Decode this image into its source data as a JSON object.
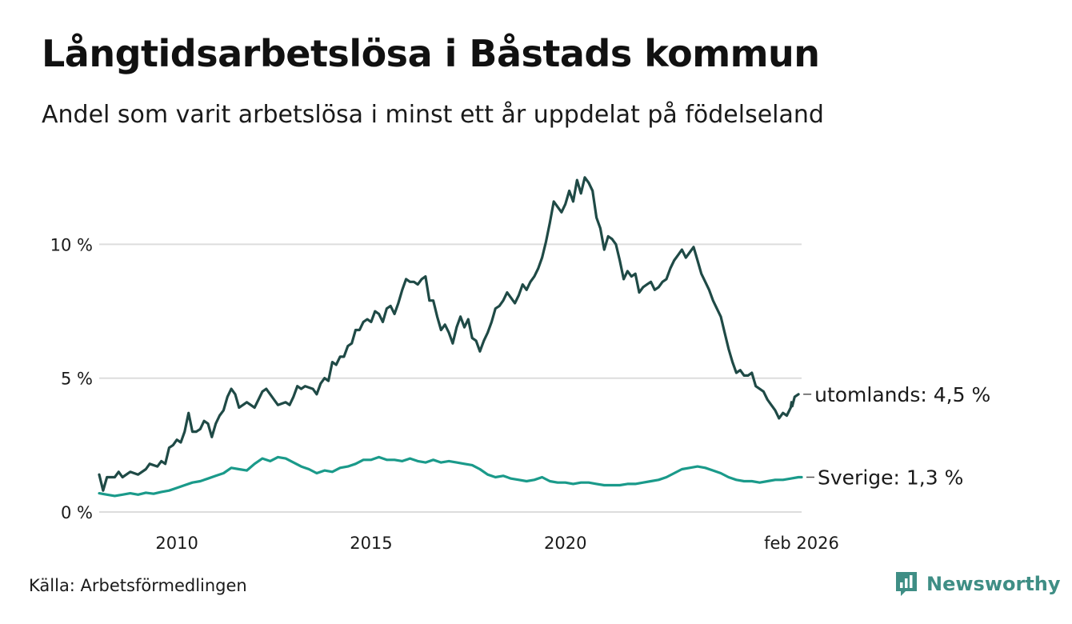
{
  "title": "Långtidsarbetslösa i Båstads kommun",
  "subtitle": "Andel som varit arbetslösa i minst ett år uppdelat på födelseland",
  "source": "Källa: Arbetsförmedlingen",
  "brand": "Newsworthy",
  "colors": {
    "utomlands": "#1f4a46",
    "sverige": "#1a9a8a",
    "grid": "#dddddd",
    "brand": "#3f8e85"
  },
  "chart_data": {
    "type": "line",
    "title": "Långtidsarbetslösa i Båstads kommun",
    "xlabel": "",
    "ylabel": "",
    "x_range": [
      2008.0,
      2026.08
    ],
    "ylim": [
      0,
      13
    ],
    "y_ticks": [
      {
        "value": 0,
        "label": "0 %"
      },
      {
        "value": 5,
        "label": "5 %"
      },
      {
        "value": 10,
        "label": "10 %"
      }
    ],
    "x_ticks": [
      {
        "value": 2010,
        "label": "2010"
      },
      {
        "value": 2015,
        "label": "2015"
      },
      {
        "value": 2020,
        "label": "2020"
      },
      {
        "value": 2026.08,
        "label": "feb 2026"
      }
    ],
    "series": [
      {
        "name": "utomlands",
        "end_label": "utomlands: 4,5 %",
        "points": [
          [
            2008.0,
            1.4
          ],
          [
            2008.1,
            0.8
          ],
          [
            2008.2,
            1.3
          ],
          [
            2008.4,
            1.3
          ],
          [
            2008.5,
            1.5
          ],
          [
            2008.6,
            1.3
          ],
          [
            2008.8,
            1.5
          ],
          [
            2009.0,
            1.4
          ],
          [
            2009.2,
            1.6
          ],
          [
            2009.3,
            1.8
          ],
          [
            2009.5,
            1.7
          ],
          [
            2009.6,
            1.9
          ],
          [
            2009.7,
            1.8
          ],
          [
            2009.8,
            2.4
          ],
          [
            2009.9,
            2.5
          ],
          [
            2010.0,
            2.7
          ],
          [
            2010.1,
            2.6
          ],
          [
            2010.2,
            3.0
          ],
          [
            2010.3,
            3.7
          ],
          [
            2010.4,
            3.0
          ],
          [
            2010.5,
            3.0
          ],
          [
            2010.6,
            3.1
          ],
          [
            2010.7,
            3.4
          ],
          [
            2010.8,
            3.3
          ],
          [
            2010.9,
            2.8
          ],
          [
            2011.0,
            3.3
          ],
          [
            2011.1,
            3.6
          ],
          [
            2011.2,
            3.8
          ],
          [
            2011.3,
            4.3
          ],
          [
            2011.4,
            4.6
          ],
          [
            2011.5,
            4.4
          ],
          [
            2011.6,
            3.9
          ],
          [
            2011.7,
            4.0
          ],
          [
            2011.8,
            4.1
          ],
          [
            2011.9,
            4.0
          ],
          [
            2012.0,
            3.9
          ],
          [
            2012.1,
            4.2
          ],
          [
            2012.2,
            4.5
          ],
          [
            2012.3,
            4.6
          ],
          [
            2012.4,
            4.4
          ],
          [
            2012.5,
            4.2
          ],
          [
            2012.6,
            4.0
          ],
          [
            2012.8,
            4.1
          ],
          [
            2012.9,
            4.0
          ],
          [
            2013.0,
            4.3
          ],
          [
            2013.1,
            4.7
          ],
          [
            2013.2,
            4.6
          ],
          [
            2013.3,
            4.7
          ],
          [
            2013.5,
            4.6
          ],
          [
            2013.6,
            4.4
          ],
          [
            2013.7,
            4.8
          ],
          [
            2013.8,
            5.0
          ],
          [
            2013.9,
            4.9
          ],
          [
            2014.0,
            5.6
          ],
          [
            2014.1,
            5.5
          ],
          [
            2014.2,
            5.8
          ],
          [
            2014.3,
            5.8
          ],
          [
            2014.4,
            6.2
          ],
          [
            2014.5,
            6.3
          ],
          [
            2014.6,
            6.8
          ],
          [
            2014.7,
            6.8
          ],
          [
            2014.8,
            7.1
          ],
          [
            2014.9,
            7.2
          ],
          [
            2015.0,
            7.1
          ],
          [
            2015.1,
            7.5
          ],
          [
            2015.2,
            7.4
          ],
          [
            2015.3,
            7.1
          ],
          [
            2015.4,
            7.6
          ],
          [
            2015.5,
            7.7
          ],
          [
            2015.6,
            7.4
          ],
          [
            2015.7,
            7.8
          ],
          [
            2015.8,
            8.3
          ],
          [
            2015.9,
            8.7
          ],
          [
            2016.0,
            8.6
          ],
          [
            2016.1,
            8.6
          ],
          [
            2016.2,
            8.5
          ],
          [
            2016.3,
            8.7
          ],
          [
            2016.4,
            8.8
          ],
          [
            2016.5,
            7.9
          ],
          [
            2016.6,
            7.9
          ],
          [
            2016.7,
            7.3
          ],
          [
            2016.8,
            6.8
          ],
          [
            2016.9,
            7.0
          ],
          [
            2017.0,
            6.7
          ],
          [
            2017.1,
            6.3
          ],
          [
            2017.2,
            6.9
          ],
          [
            2017.3,
            7.3
          ],
          [
            2017.4,
            6.9
          ],
          [
            2017.5,
            7.2
          ],
          [
            2017.6,
            6.5
          ],
          [
            2017.7,
            6.4
          ],
          [
            2017.8,
            6.0
          ],
          [
            2017.9,
            6.4
          ],
          [
            2018.0,
            6.7
          ],
          [
            2018.1,
            7.1
          ],
          [
            2018.2,
            7.6
          ],
          [
            2018.3,
            7.7
          ],
          [
            2018.4,
            7.9
          ],
          [
            2018.5,
            8.2
          ],
          [
            2018.6,
            8.0
          ],
          [
            2018.7,
            7.8
          ],
          [
            2018.8,
            8.1
          ],
          [
            2018.9,
            8.5
          ],
          [
            2019.0,
            8.3
          ],
          [
            2019.1,
            8.6
          ],
          [
            2019.2,
            8.8
          ],
          [
            2019.3,
            9.1
          ],
          [
            2019.4,
            9.5
          ],
          [
            2019.5,
            10.1
          ],
          [
            2019.6,
            10.8
          ],
          [
            2019.7,
            11.6
          ],
          [
            2019.8,
            11.4
          ],
          [
            2019.9,
            11.2
          ],
          [
            2020.0,
            11.5
          ],
          [
            2020.1,
            12.0
          ],
          [
            2020.2,
            11.6
          ],
          [
            2020.3,
            12.4
          ],
          [
            2020.4,
            11.9
          ],
          [
            2020.5,
            12.5
          ],
          [
            2020.6,
            12.3
          ],
          [
            2020.7,
            12.0
          ],
          [
            2020.8,
            11.0
          ],
          [
            2020.9,
            10.6
          ],
          [
            2021.0,
            9.8
          ],
          [
            2021.1,
            10.3
          ],
          [
            2021.2,
            10.2
          ],
          [
            2021.3,
            10.0
          ],
          [
            2021.4,
            9.4
          ],
          [
            2021.5,
            8.7
          ],
          [
            2021.6,
            9.0
          ],
          [
            2021.7,
            8.8
          ],
          [
            2021.8,
            8.9
          ],
          [
            2021.9,
            8.2
          ],
          [
            2022.0,
            8.4
          ],
          [
            2022.1,
            8.5
          ],
          [
            2022.2,
            8.6
          ],
          [
            2022.3,
            8.3
          ],
          [
            2022.4,
            8.4
          ],
          [
            2022.5,
            8.6
          ],
          [
            2022.6,
            8.7
          ],
          [
            2022.7,
            9.1
          ],
          [
            2022.8,
            9.4
          ],
          [
            2022.9,
            9.6
          ],
          [
            2023.0,
            9.8
          ],
          [
            2023.1,
            9.5
          ],
          [
            2023.2,
            9.7
          ],
          [
            2023.3,
            9.9
          ],
          [
            2023.4,
            9.4
          ],
          [
            2023.5,
            8.9
          ],
          [
            2023.6,
            8.6
          ],
          [
            2023.7,
            8.3
          ],
          [
            2023.8,
            7.9
          ],
          [
            2023.9,
            7.6
          ],
          [
            2024.0,
            7.3
          ],
          [
            2024.1,
            6.7
          ],
          [
            2024.2,
            6.1
          ],
          [
            2024.3,
            5.6
          ],
          [
            2024.4,
            5.2
          ],
          [
            2024.5,
            5.3
          ],
          [
            2024.6,
            5.1
          ],
          [
            2024.7,
            5.1
          ],
          [
            2024.8,
            5.2
          ],
          [
            2024.9,
            4.7
          ],
          [
            2025.0,
            4.6
          ],
          [
            2025.1,
            4.5
          ],
          [
            2025.2,
            4.2
          ],
          [
            2025.3,
            4.0
          ],
          [
            2025.4,
            3.8
          ],
          [
            2025.5,
            3.5
          ],
          [
            2025.6,
            3.7
          ],
          [
            2025.7,
            3.6
          ],
          [
            2025.8,
            3.9
          ],
          [
            2025.9,
            4.3
          ],
          [
            2026.0,
            4.4
          ],
          [
            2025.82,
            4.1
          ],
          [
            2025.84,
            3.95
          ]
        ]
      },
      {
        "name": "Sverige",
        "end_label": "Sverige: 1,3 %",
        "points": [
          [
            2008.0,
            0.7
          ],
          [
            2008.2,
            0.65
          ],
          [
            2008.4,
            0.6
          ],
          [
            2008.6,
            0.65
          ],
          [
            2008.8,
            0.7
          ],
          [
            2009.0,
            0.65
          ],
          [
            2009.2,
            0.72
          ],
          [
            2009.4,
            0.68
          ],
          [
            2009.6,
            0.75
          ],
          [
            2009.8,
            0.8
          ],
          [
            2010.0,
            0.9
          ],
          [
            2010.2,
            1.0
          ],
          [
            2010.4,
            1.1
          ],
          [
            2010.6,
            1.15
          ],
          [
            2010.8,
            1.25
          ],
          [
            2011.0,
            1.35
          ],
          [
            2011.2,
            1.45
          ],
          [
            2011.4,
            1.65
          ],
          [
            2011.6,
            1.6
          ],
          [
            2011.8,
            1.55
          ],
          [
            2012.0,
            1.8
          ],
          [
            2012.2,
            2.0
          ],
          [
            2012.4,
            1.9
          ],
          [
            2012.6,
            2.05
          ],
          [
            2012.8,
            2.0
          ],
          [
            2013.0,
            1.85
          ],
          [
            2013.2,
            1.7
          ],
          [
            2013.4,
            1.6
          ],
          [
            2013.6,
            1.45
          ],
          [
            2013.8,
            1.55
          ],
          [
            2014.0,
            1.5
          ],
          [
            2014.2,
            1.65
          ],
          [
            2014.4,
            1.7
          ],
          [
            2014.6,
            1.8
          ],
          [
            2014.8,
            1.95
          ],
          [
            2015.0,
            1.95
          ],
          [
            2015.2,
            2.05
          ],
          [
            2015.4,
            1.95
          ],
          [
            2015.6,
            1.95
          ],
          [
            2015.8,
            1.9
          ],
          [
            2016.0,
            2.0
          ],
          [
            2016.2,
            1.9
          ],
          [
            2016.4,
            1.85
          ],
          [
            2016.6,
            1.95
          ],
          [
            2016.8,
            1.85
          ],
          [
            2017.0,
            1.9
          ],
          [
            2017.2,
            1.85
          ],
          [
            2017.4,
            1.8
          ],
          [
            2017.6,
            1.75
          ],
          [
            2017.8,
            1.6
          ],
          [
            2018.0,
            1.4
          ],
          [
            2018.2,
            1.3
          ],
          [
            2018.4,
            1.35
          ],
          [
            2018.6,
            1.25
          ],
          [
            2018.8,
            1.2
          ],
          [
            2019.0,
            1.15
          ],
          [
            2019.2,
            1.2
          ],
          [
            2019.4,
            1.3
          ],
          [
            2019.6,
            1.15
          ],
          [
            2019.8,
            1.1
          ],
          [
            2020.0,
            1.1
          ],
          [
            2020.2,
            1.05
          ],
          [
            2020.4,
            1.1
          ],
          [
            2020.6,
            1.1
          ],
          [
            2020.8,
            1.05
          ],
          [
            2021.0,
            1.0
          ],
          [
            2021.2,
            1.0
          ],
          [
            2021.4,
            1.0
          ],
          [
            2021.6,
            1.05
          ],
          [
            2021.8,
            1.05
          ],
          [
            2022.0,
            1.1
          ],
          [
            2022.2,
            1.15
          ],
          [
            2022.4,
            1.2
          ],
          [
            2022.6,
            1.3
          ],
          [
            2022.8,
            1.45
          ],
          [
            2023.0,
            1.6
          ],
          [
            2023.2,
            1.65
          ],
          [
            2023.4,
            1.7
          ],
          [
            2023.6,
            1.65
          ],
          [
            2023.8,
            1.55
          ],
          [
            2024.0,
            1.45
          ],
          [
            2024.2,
            1.3
          ],
          [
            2024.4,
            1.2
          ],
          [
            2024.6,
            1.15
          ],
          [
            2024.8,
            1.15
          ],
          [
            2025.0,
            1.1
          ],
          [
            2025.2,
            1.15
          ],
          [
            2025.4,
            1.2
          ],
          [
            2025.6,
            1.2
          ],
          [
            2025.8,
            1.25
          ],
          [
            2026.0,
            1.3
          ],
          [
            2026.08,
            1.3
          ]
        ]
      }
    ]
  }
}
